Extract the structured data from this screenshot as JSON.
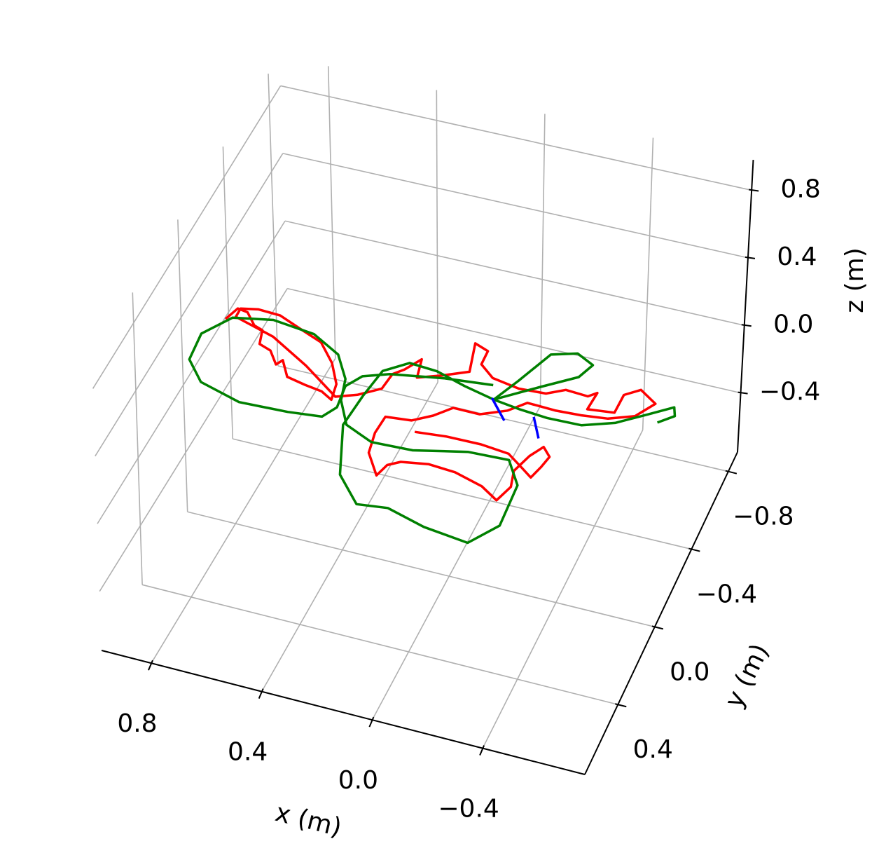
{
  "chart_data": {
    "type": "line3d",
    "xlabel": "x (m)",
    "ylabel": "y (m)",
    "zlabel": "z (m)",
    "xlim": [
      0.98,
      -0.77
    ],
    "ylim": [
      -0.9,
      0.76
    ],
    "zlim": [
      -0.75,
      0.98
    ],
    "xticks": [
      0.8,
      0.4,
      {
        "value": 0,
        "label": "0.0"
      },
      {
        "value": -0.4,
        "label": "−0.4"
      }
    ],
    "yticks": [
      {
        "value": -0.8,
        "label": "−0.8"
      },
      {
        "value": -0.4,
        "label": "−0.4"
      },
      {
        "value": 0,
        "label": "0.0"
      },
      0.4
    ],
    "zticks": [
      {
        "value": -0.4,
        "label": "−0.4"
      },
      {
        "value": 0,
        "label": "0.0"
      },
      0.4,
      0.8
    ],
    "grid": true,
    "series": [
      {
        "color": "#ff0000",
        "x": [
          0.976,
          0.957,
          0.918,
          0.87,
          0.834,
          0.816,
          0.768,
          0.723,
          0.709,
          0.663,
          0.59,
          0.524,
          0.477,
          0.49,
          0.544,
          0.619,
          0.711,
          0.805,
          0.888,
          0.948,
          0.947,
          0.786,
          0.623,
          0.47,
          0.402,
          0.334,
          0.326,
          0.295,
          0.257,
          0.239,
          0.159,
          0.077,
          0.109,
          0.053,
          0.051,
          -0.011,
          -0.116,
          -0.214,
          -0.274,
          -0.358,
          -0.384,
          -0.378,
          -0.474,
          -0.476,
          -0.525,
          -0.596,
          -0.548,
          -0.462,
          -0.367,
          -0.273,
          -0.169,
          -0.117,
          -0.031,
          0.066,
          0.118,
          0.18,
          0.271,
          0.276,
          0.26,
          0.195,
          0.179,
          0.141,
          0.048,
          -0.052,
          -0.162,
          -0.233,
          -0.257,
          -0.24,
          -0.266,
          -0.297,
          -0.333,
          -0.322,
          -0.306,
          -0.261,
          -0.194,
          -0.088,
          0.038,
          0.149
        ],
        "y": [
          -0.364,
          -0.428,
          -0.421,
          -0.366,
          -0.352,
          -0.283,
          -0.264,
          -0.204,
          -0.232,
          -0.158,
          -0.14,
          -0.128,
          -0.099,
          -0.179,
          -0.274,
          -0.36,
          -0.4,
          -0.442,
          -0.447,
          -0.431,
          -0.386,
          -0.333,
          -0.232,
          -0.118,
          -0.152,
          -0.209,
          -0.289,
          -0.324,
          -0.392,
          -0.3,
          -0.339,
          -0.386,
          -0.526,
          -0.503,
          -0.434,
          -0.382,
          -0.361,
          -0.368,
          -0.407,
          -0.401,
          -0.427,
          -0.34,
          -0.354,
          -0.447,
          -0.489,
          -0.44,
          -0.36,
          -0.319,
          -0.305,
          -0.299,
          -0.304,
          -0.246,
          -0.197,
          -0.198,
          -0.139,
          -0.092,
          -0.08,
          0.007,
          0.108,
          0.206,
          0.145,
          0.115,
          0.094,
          0.102,
          0.137,
          0.186,
          0.107,
          0.029,
          -0.058,
          -0.116,
          -0.076,
          -0.018,
          0.041,
          0.006,
          -0.045,
          -0.058,
          -0.056,
          -0.042
        ],
        "z": [
          0,
          0,
          0,
          0,
          0,
          0,
          0,
          0,
          0,
          0,
          0,
          0,
          0,
          0,
          0,
          0,
          0,
          0,
          0,
          0,
          0,
          0,
          0,
          0,
          0,
          0,
          0,
          0,
          0,
          0,
          0,
          0,
          0,
          0,
          0,
          0,
          0,
          0,
          0,
          0,
          0,
          0,
          0,
          0,
          0,
          0,
          0,
          0,
          0,
          0,
          0,
          0,
          0,
          0,
          0,
          0,
          0,
          0,
          0,
          0,
          0,
          0,
          0,
          0,
          0,
          0,
          0,
          0,
          0,
          0,
          0,
          0,
          0,
          0,
          0,
          0,
          0,
          0
        ]
      },
      {
        "color": "#008000",
        "x": [
          -0.633,
          -0.681,
          -0.665,
          -0.589,
          -0.493,
          -0.386,
          -0.26,
          -0.155,
          -0.052,
          -0.101,
          -0.163,
          -0.251,
          -0.322,
          -0.295,
          -0.181,
          -0.052,
          0.067,
          0.185,
          0.29,
          0.364,
          0.382,
          0.393,
          0.313,
          0.208,
          0.102,
          -0.045,
          -0.211,
          -0.285,
          -0.276,
          -0.206,
          -0.058,
          0.123,
          0.271,
          0.382,
          0.445,
          0.47,
          0.54,
          0.658,
          0.818,
          0.956,
          1.025,
          1.012,
          0.93,
          0.769,
          0.595,
          0.476,
          0.445,
          0.457,
          0.42,
          0.335,
          0.149,
          -0.025
        ],
        "y": [
          -0.355,
          -0.404,
          -0.444,
          -0.383,
          -0.307,
          -0.259,
          -0.255,
          -0.265,
          -0.282,
          -0.397,
          -0.556,
          -0.59,
          -0.552,
          -0.481,
          -0.39,
          -0.282,
          -0.313,
          -0.352,
          -0.361,
          -0.293,
          -0.152,
          0.006,
          0.244,
          0.364,
          0.346,
          0.393,
          0.417,
          0.3,
          0.092,
          -0.016,
          -0.008,
          0.047,
          0.055,
          0.002,
          -0.108,
          -0.213,
          -0.321,
          -0.391,
          -0.413,
          -0.378,
          -0.267,
          -0.13,
          -0.035,
          0.017,
          0.008,
          -0.009,
          -0.07,
          -0.18,
          -0.245,
          -0.286,
          -0.327,
          -0.349
        ],
        "z": [
          0,
          0,
          0,
          0,
          0,
          0,
          0,
          0,
          0,
          0,
          0,
          0,
          0,
          0,
          0,
          0,
          0,
          0,
          0,
          0,
          0,
          0,
          0,
          0,
          0,
          0,
          0,
          0,
          0,
          0,
          0,
          0,
          0,
          0,
          0,
          0,
          0,
          0,
          0,
          0,
          0,
          0,
          0,
          0,
          0,
          0,
          0,
          0,
          0,
          0,
          0,
          0
        ]
      },
      {
        "color": "#0000ff",
        "x": [
          -0.044,
          -0.123,
          null,
          -0.214,
          -0.266
        ],
        "y": [
          -0.287,
          -0.195,
          null,
          -0.245,
          -0.15
        ],
        "z": [
          0,
          0,
          null,
          0,
          0
        ]
      }
    ]
  }
}
